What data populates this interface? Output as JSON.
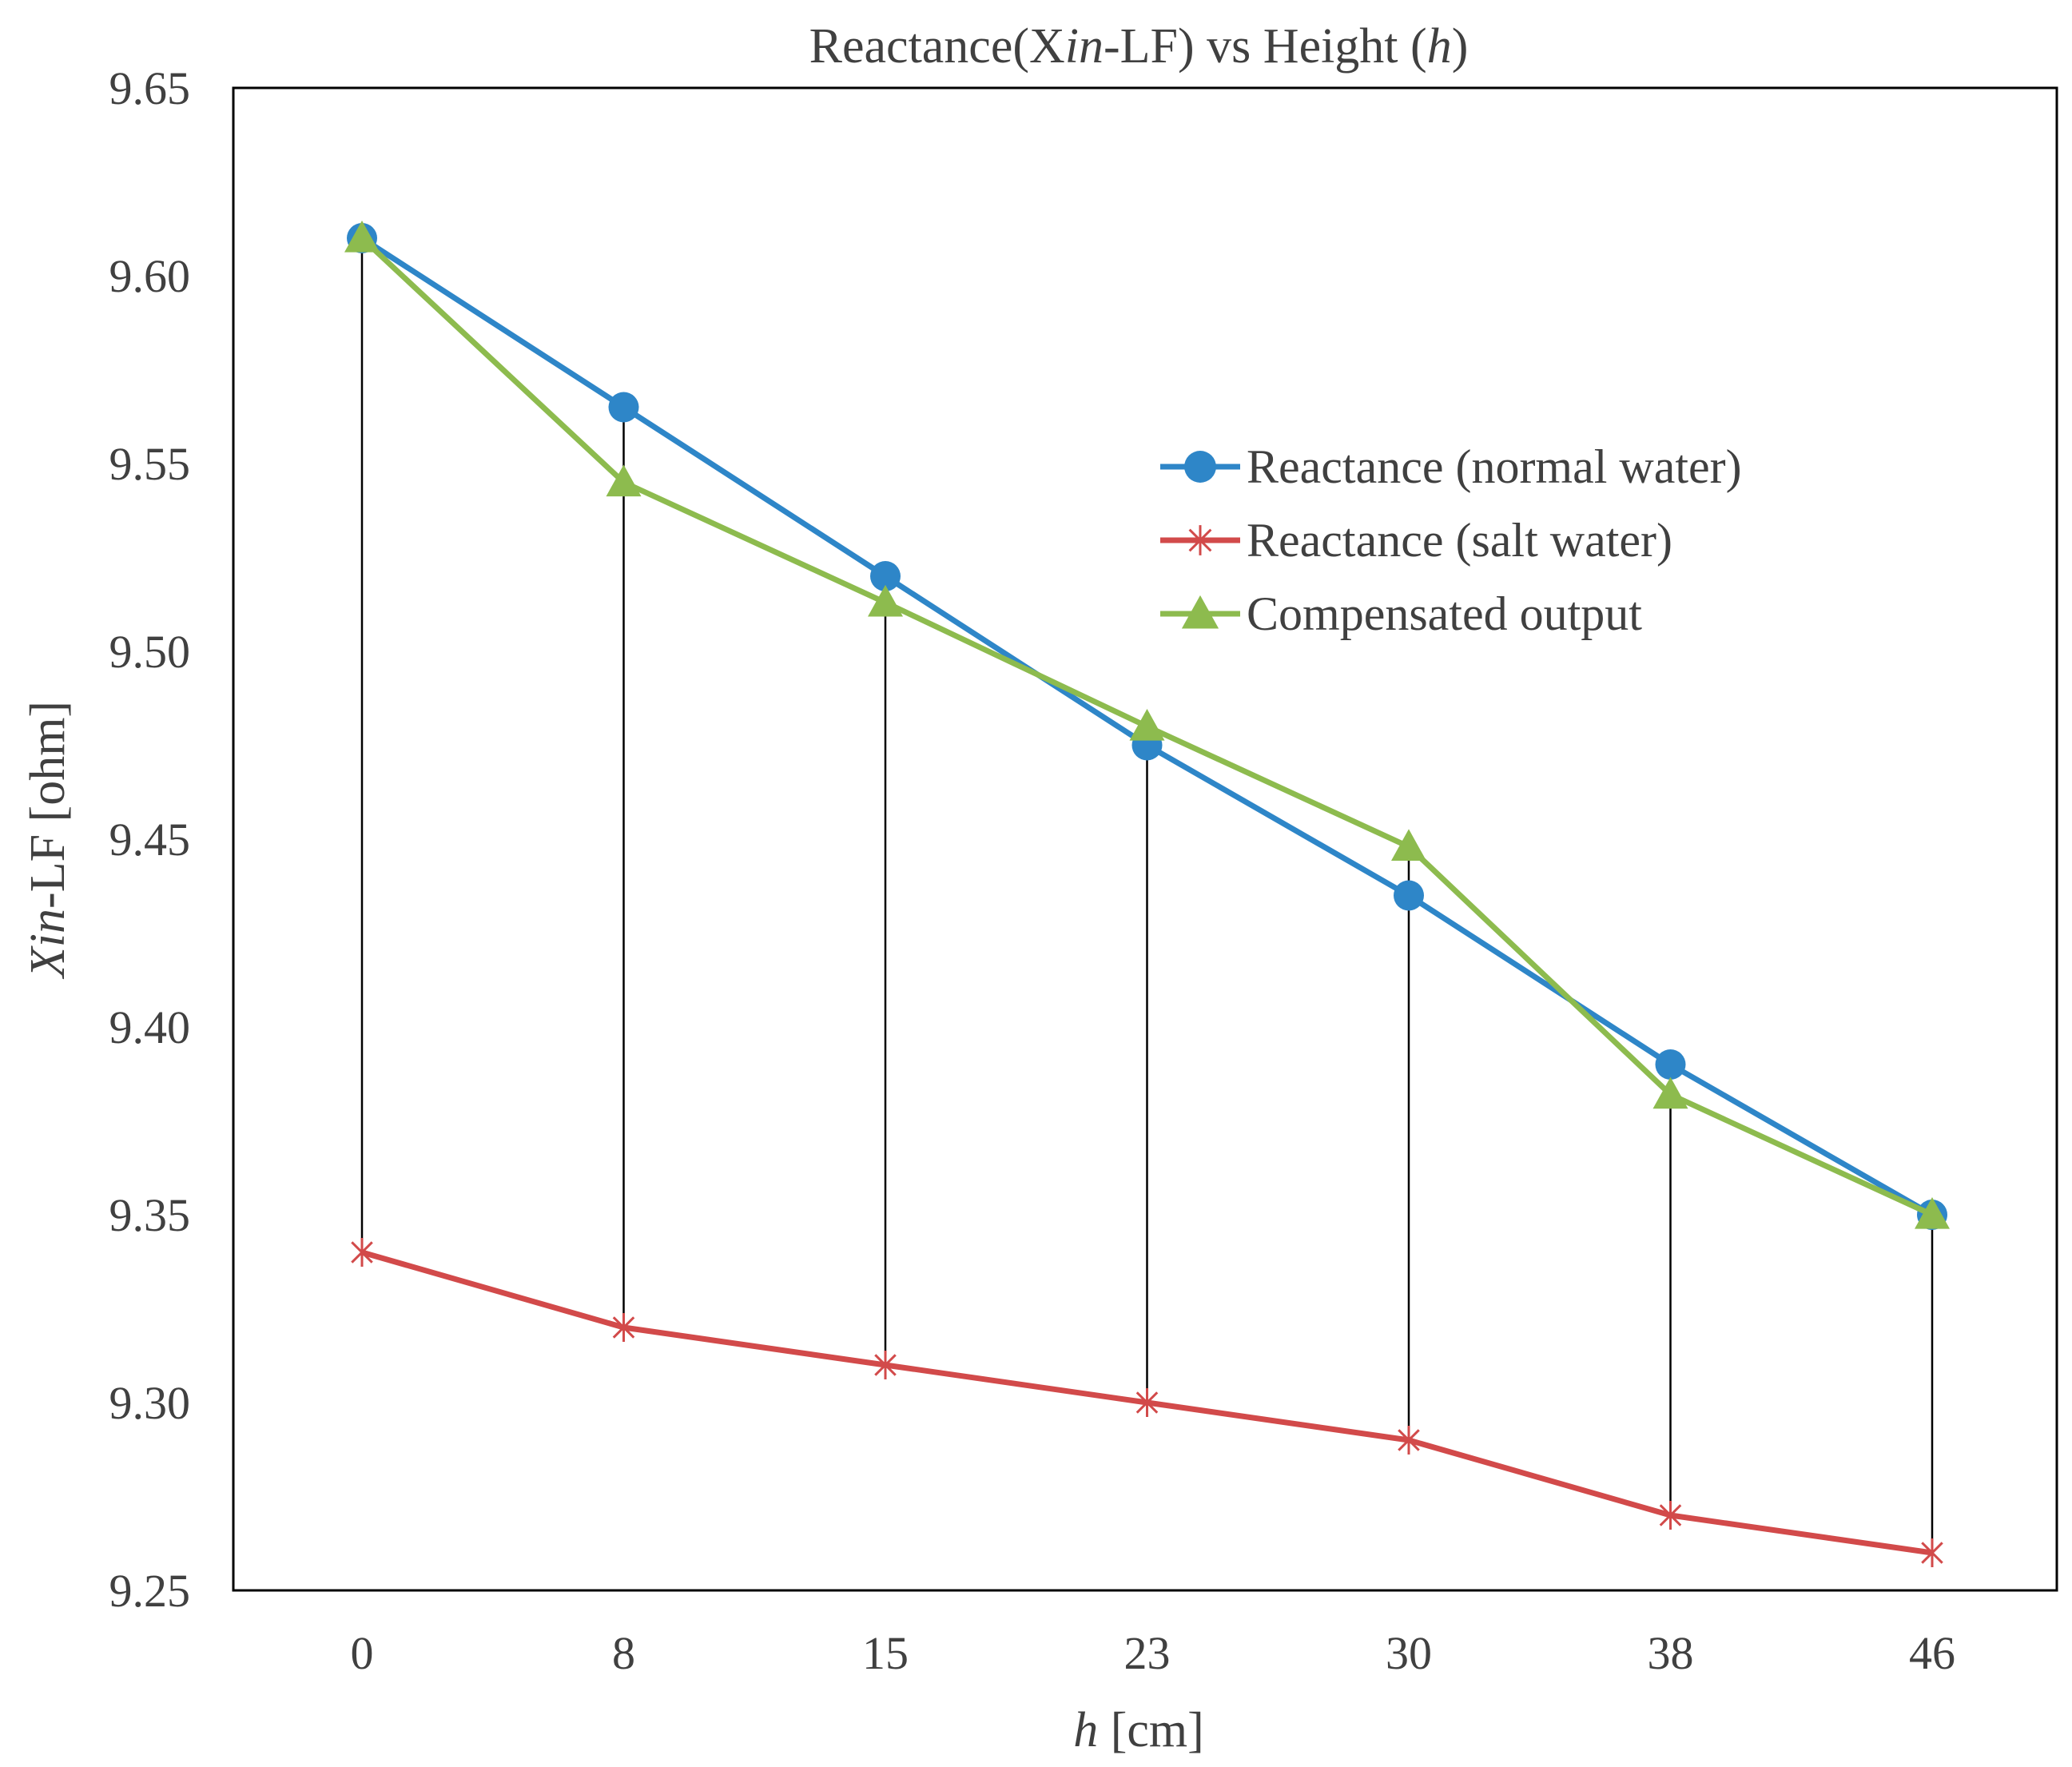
{
  "chart_data": {
    "type": "line",
    "title": {
      "prefix": "Reactance(X",
      "italic1": "in",
      "middle": "-LF) vs Height (",
      "italic2": "h",
      "suffix": ")"
    },
    "xlabel": {
      "italic": "h",
      "rest": " [cm]"
    },
    "ylabel": {
      "italic": "Xin",
      "rest": "-LF [ohm]"
    },
    "categories": [
      "0",
      "8",
      "15",
      "23",
      "30",
      "38",
      "46"
    ],
    "ylim": [
      9.25,
      9.65
    ],
    "yticks": [
      "9.25",
      "9.30",
      "9.35",
      "9.40",
      "9.45",
      "9.50",
      "9.55",
      "9.60",
      "9.65"
    ],
    "series": [
      {
        "name": "Reactance (normal water)",
        "color": "#2E86C8",
        "marker": "circle",
        "values": [
          9.61,
          9.565,
          9.52,
          9.475,
          9.435,
          9.39,
          9.35
        ]
      },
      {
        "name": "Reactance (salt water)",
        "color": "#D24A4A",
        "marker": "asterisk",
        "values": [
          9.34,
          9.32,
          9.31,
          9.3,
          9.29,
          9.27,
          9.26
        ]
      },
      {
        "name": "Compensated output",
        "color": "#8DBB4E",
        "marker": "triangle",
        "values": [
          9.61,
          9.545,
          9.513,
          9.48,
          9.448,
          9.382,
          9.35
        ]
      }
    ],
    "drop_lines": true,
    "legend_position": "upper-right",
    "grid": false
  }
}
